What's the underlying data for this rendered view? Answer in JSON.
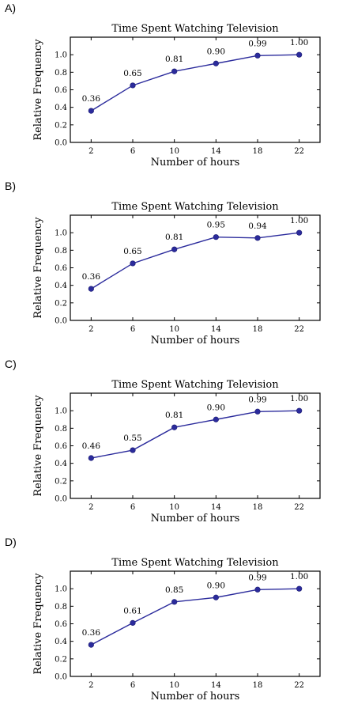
{
  "chart_data": [
    {
      "option": "A)",
      "type": "line",
      "title": "Time Spent Watching Television",
      "xlabel": "Number of hours",
      "ylabel": "Relative Frequency",
      "x": [
        2,
        6,
        10,
        14,
        18,
        22
      ],
      "values": [
        0.36,
        0.65,
        0.81,
        0.9,
        0.99,
        1.0
      ],
      "labels": [
        "0.36",
        "0.65",
        "0.81",
        "0.90",
        "0.99",
        "1.00"
      ],
      "xlim": [
        0,
        24
      ],
      "ylim": [
        0,
        1.2
      ],
      "yticks": [
        "0.0",
        "0.2",
        "0.4",
        "0.6",
        "0.8",
        "1.0"
      ],
      "xticks": [
        "2",
        "6",
        "10",
        "14",
        "18",
        "22"
      ],
      "color": "#2b2b9c",
      "grid": false
    },
    {
      "option": "B)",
      "type": "line",
      "title": "Time Spent Watching Television",
      "xlabel": "Number of hours",
      "ylabel": "Relative Frequency",
      "x": [
        2,
        6,
        10,
        14,
        18,
        22
      ],
      "values": [
        0.36,
        0.65,
        0.81,
        0.95,
        0.94,
        1.0
      ],
      "labels": [
        "0.36",
        "0.65",
        "0.81",
        "0.95",
        "0.94",
        "1.00"
      ],
      "xlim": [
        0,
        24
      ],
      "ylim": [
        0,
        1.2
      ],
      "yticks": [
        "0.0",
        "0.2",
        "0.4",
        "0.6",
        "0.8",
        "1.0"
      ],
      "xticks": [
        "2",
        "6",
        "10",
        "14",
        "18",
        "22"
      ],
      "color": "#2b2b9c",
      "grid": false
    },
    {
      "option": "C)",
      "type": "line",
      "title": "Time Spent Watching Television",
      "xlabel": "Number of hours",
      "ylabel": "Relative Frequency",
      "x": [
        2,
        6,
        10,
        14,
        18,
        22
      ],
      "values": [
        0.46,
        0.55,
        0.81,
        0.9,
        0.99,
        1.0
      ],
      "labels": [
        "0.46",
        "0.55",
        "0.81",
        "0.90",
        "0.99",
        "1.00"
      ],
      "xlim": [
        0,
        24
      ],
      "ylim": [
        0,
        1.2
      ],
      "yticks": [
        "0.0",
        "0.2",
        "0.4",
        "0.6",
        "0.8",
        "1.0"
      ],
      "xticks": [
        "2",
        "6",
        "10",
        "14",
        "18",
        "22"
      ],
      "color": "#2b2b9c",
      "grid": false
    },
    {
      "option": "D)",
      "type": "line",
      "title": "Time Spent Watching Television",
      "xlabel": "Number of hours",
      "ylabel": "Relative Frequency",
      "x": [
        2,
        6,
        10,
        14,
        18,
        22
      ],
      "values": [
        0.36,
        0.61,
        0.85,
        0.9,
        0.99,
        1.0
      ],
      "labels": [
        "0.36",
        "0.61",
        "0.85",
        "0.90",
        "0.99",
        "1.00"
      ],
      "xlim": [
        0,
        24
      ],
      "ylim": [
        0,
        1.2
      ],
      "yticks": [
        "0.0",
        "0.2",
        "0.4",
        "0.6",
        "0.8",
        "1.0"
      ],
      "xticks": [
        "2",
        "6",
        "10",
        "14",
        "18",
        "22"
      ],
      "color": "#2b2b9c",
      "grid": false
    }
  ]
}
